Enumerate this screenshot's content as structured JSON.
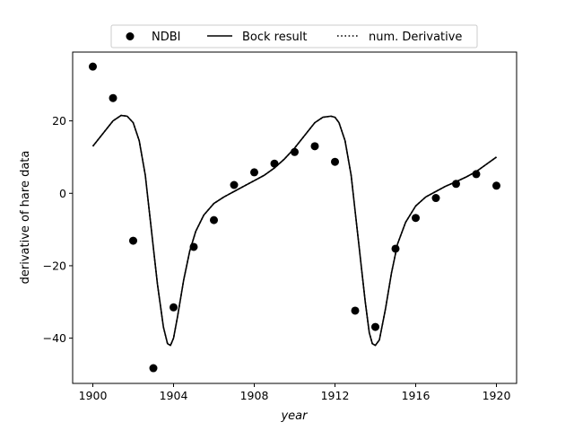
{
  "chart_data": {
    "type": "line",
    "xlabel": "year",
    "ylabel": "derivative of hare data",
    "xlim": [
      1899.0,
      1921.0
    ],
    "ylim": [
      -52.5,
      39.0
    ],
    "xticks": [
      1900,
      1904,
      1908,
      1912,
      1916,
      1920
    ],
    "yticks": [
      -40,
      -20,
      0,
      20
    ],
    "grid": false,
    "legend": {
      "placement": "top-center",
      "entries": [
        {
          "label": "NDBI",
          "style": "marker"
        },
        {
          "label": "Bock result",
          "style": "solid"
        },
        {
          "label": "num. Derivative",
          "style": "dotted"
        }
      ]
    },
    "series": [
      {
        "name": "NDBI",
        "kind": "scatter",
        "color": "#000000",
        "x": [
          1900,
          1901,
          1902,
          1903,
          1904,
          1905,
          1906,
          1907,
          1908,
          1909,
          1910,
          1911,
          1912,
          1913,
          1914,
          1915,
          1916,
          1917,
          1918,
          1919,
          1920
        ],
        "y": [
          35.0,
          26.3,
          -13.1,
          -48.3,
          -31.5,
          -14.8,
          -7.4,
          2.3,
          5.8,
          8.2,
          11.4,
          13.0,
          8.7,
          -32.4,
          -36.9,
          -15.3,
          -6.8,
          -1.3,
          2.6,
          5.3,
          2.1
        ]
      },
      {
        "name": "Bock result",
        "kind": "line",
        "style": "solid",
        "color": "#000000",
        "x": [
          1900.0,
          1900.5,
          1901.0,
          1901.4,
          1901.7,
          1902.0,
          1902.3,
          1902.6,
          1902.9,
          1903.2,
          1903.5,
          1903.7,
          1903.85,
          1904.0,
          1904.2,
          1904.5,
          1904.8,
          1905.1,
          1905.5,
          1906.0,
          1906.5,
          1907.0,
          1907.5,
          1908.0,
          1908.5,
          1909.0,
          1909.5,
          1910.0,
          1910.5,
          1911.0,
          1911.4,
          1911.8,
          1912.0,
          1912.2,
          1912.5,
          1912.8,
          1913.0,
          1913.2,
          1913.5,
          1913.7,
          1913.85,
          1914.0,
          1914.2,
          1914.5,
          1914.8,
          1915.1,
          1915.5,
          1916.0,
          1916.5,
          1917.0,
          1917.5,
          1918.0,
          1918.5,
          1919.0,
          1919.5,
          1920.0
        ],
        "y": [
          13.0,
          16.5,
          20.0,
          21.5,
          21.3,
          19.5,
          14.5,
          5.0,
          -10.0,
          -25.0,
          -37.0,
          -41.5,
          -42.0,
          -40.0,
          -34.0,
          -24.0,
          -16.0,
          -10.5,
          -6.0,
          -2.8,
          -1.0,
          0.5,
          2.0,
          3.5,
          5.0,
          7.0,
          9.5,
          12.5,
          16.0,
          19.5,
          21.0,
          21.3,
          21.0,
          19.5,
          14.5,
          5.0,
          -5.0,
          -15.0,
          -30.0,
          -38.5,
          -41.5,
          -42.0,
          -40.5,
          -32.0,
          -22.0,
          -14.0,
          -8.0,
          -3.5,
          -1.0,
          0.5,
          2.0,
          3.2,
          4.5,
          6.0,
          8.0,
          10.0
        ]
      },
      {
        "name": "num. Derivative",
        "kind": "line",
        "style": "dotted",
        "color": "#000000",
        "x": [
          1900.0,
          1900.5,
          1901.0,
          1901.4,
          1901.7,
          1902.0,
          1902.3,
          1902.6,
          1902.9,
          1903.2,
          1903.5,
          1903.7,
          1903.85,
          1904.0,
          1904.2,
          1904.5,
          1904.8,
          1905.1,
          1905.5,
          1906.0,
          1906.5,
          1907.0,
          1907.5,
          1908.0,
          1908.5,
          1909.0,
          1909.5,
          1910.0,
          1910.5,
          1911.0,
          1911.4,
          1911.8,
          1912.0,
          1912.2,
          1912.5,
          1912.8,
          1913.0,
          1913.2,
          1913.5,
          1913.7,
          1913.85,
          1914.0,
          1914.2,
          1914.5,
          1914.8,
          1915.1,
          1915.5,
          1916.0,
          1916.5,
          1917.0,
          1917.5,
          1918.0,
          1918.5,
          1919.0,
          1919.5,
          1920.0
        ],
        "y": [
          13.0,
          16.5,
          20.0,
          21.5,
          21.3,
          19.5,
          14.5,
          5.0,
          -10.0,
          -25.0,
          -37.0,
          -41.5,
          -42.0,
          -40.0,
          -34.0,
          -24.0,
          -16.0,
          -10.5,
          -6.0,
          -2.8,
          -1.0,
          0.5,
          2.0,
          3.5,
          5.0,
          7.0,
          9.5,
          12.5,
          16.0,
          19.5,
          21.0,
          21.3,
          21.0,
          19.5,
          14.5,
          5.0,
          -5.0,
          -15.0,
          -30.0,
          -38.5,
          -41.5,
          -42.0,
          -40.5,
          -32.0,
          -22.0,
          -14.0,
          -8.0,
          -3.5,
          -1.0,
          0.5,
          2.0,
          3.2,
          4.5,
          6.0,
          8.0,
          10.0
        ]
      }
    ]
  }
}
